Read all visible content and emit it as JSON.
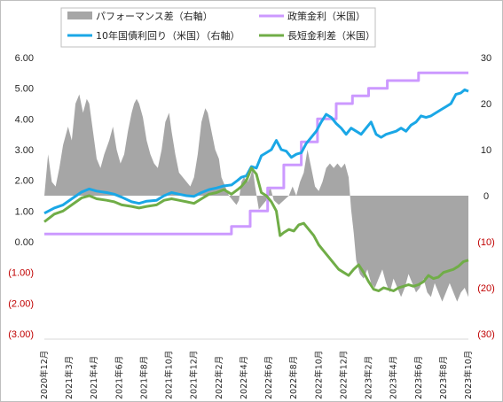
{
  "chart_data": {
    "type": "line",
    "x_range": [
      "2020-12",
      "2023-10"
    ],
    "x_tick_labels": [
      "2020年12月",
      "2021年3月",
      "2021年4月",
      "2021年6月",
      "2021年8月",
      "2021年10月",
      "2021年12月",
      "2022年2月",
      "2022年4月",
      "2022年6月",
      "2022年8月",
      "2022年10月",
      "2022年12月",
      "2023年2月",
      "2023年4月",
      "2023年6月",
      "2023年8月",
      "2023年10月"
    ],
    "y_left": {
      "ticks": [
        6,
        5,
        4,
        3,
        2,
        1,
        0,
        -1,
        -2,
        -3
      ],
      "tick_labels": [
        "6.00",
        "5.00",
        "4.00",
        "3.00",
        "2.00",
        "1.00",
        "0.00",
        "(1.00)",
        "(2.00)",
        "(3.00)"
      ],
      "range": [
        -3,
        6
      ]
    },
    "y_right": {
      "ticks": [
        30,
        20,
        10,
        0,
        -10,
        -20,
        -30
      ],
      "tick_labels": [
        "30",
        "20",
        "10",
        "0",
        "(10)",
        "(20)",
        "(30)"
      ],
      "range": [
        -30,
        30
      ]
    },
    "legend_position": "top",
    "gridlines": false,
    "series": [
      {
        "name": "パフォーマンス差（右軸）",
        "type": "area",
        "axis": "right",
        "color": "#a6a6a6",
        "points": [
          [
            0,
            0
          ],
          [
            0.3,
            9
          ],
          [
            0.6,
            3
          ],
          [
            0.9,
            2
          ],
          [
            1.2,
            6
          ],
          [
            1.5,
            11
          ],
          [
            1.9,
            15
          ],
          [
            2.2,
            12
          ],
          [
            2.5,
            20
          ],
          [
            2.8,
            22
          ],
          [
            3.1,
            18
          ],
          [
            3.4,
            21
          ],
          [
            3.6,
            20
          ],
          [
            3.9,
            14
          ],
          [
            4.2,
            8
          ],
          [
            4.5,
            6
          ],
          [
            4.8,
            9
          ],
          [
            5.2,
            12
          ],
          [
            5.5,
            15
          ],
          [
            5.8,
            10
          ],
          [
            6.1,
            7
          ],
          [
            6.4,
            9
          ],
          [
            6.7,
            14
          ],
          [
            7.0,
            18
          ],
          [
            7.2,
            20
          ],
          [
            7.4,
            21
          ],
          [
            7.6,
            20
          ],
          [
            7.9,
            17
          ],
          [
            8.2,
            12
          ],
          [
            8.5,
            9
          ],
          [
            8.8,
            7
          ],
          [
            9.1,
            6
          ],
          [
            9.4,
            10
          ],
          [
            9.7,
            16
          ],
          [
            10.0,
            18
          ],
          [
            10.2,
            14
          ],
          [
            10.5,
            9
          ],
          [
            10.8,
            5
          ],
          [
            11.1,
            4
          ],
          [
            11.4,
            3
          ],
          [
            11.7,
            2
          ],
          [
            12.0,
            4
          ],
          [
            12.3,
            9
          ],
          [
            12.6,
            16
          ],
          [
            12.9,
            19
          ],
          [
            13.1,
            18
          ],
          [
            13.4,
            14
          ],
          [
            13.7,
            10
          ],
          [
            14.0,
            8
          ],
          [
            14.2,
            4
          ],
          [
            14.5,
            2
          ],
          [
            14.8,
            0
          ],
          [
            15.1,
            -1
          ],
          [
            15.4,
            -2
          ],
          [
            15.6,
            -1
          ],
          [
            15.8,
            3
          ],
          [
            16.0,
            4
          ],
          [
            16.3,
            3
          ],
          [
            16.5,
            4
          ],
          [
            16.7,
            6
          ],
          [
            16.9,
            2
          ],
          [
            17.2,
            -3
          ],
          [
            17.5,
            -2
          ],
          [
            17.8,
            -1
          ],
          [
            18.1,
            2
          ],
          [
            18.4,
            -1
          ],
          [
            18.8,
            -2
          ],
          [
            19.2,
            -1
          ],
          [
            19.6,
            0
          ],
          [
            19.9,
            2
          ],
          [
            20.2,
            0
          ],
          [
            20.5,
            3
          ],
          [
            20.8,
            5
          ],
          [
            21.1,
            10
          ],
          [
            21.4,
            6
          ],
          [
            21.7,
            2
          ],
          [
            22.0,
            1
          ],
          [
            22.3,
            3
          ],
          [
            22.6,
            6
          ],
          [
            22.9,
            7
          ],
          [
            23.2,
            6
          ],
          [
            23.5,
            7
          ],
          [
            23.8,
            6
          ],
          [
            24.1,
            7
          ],
          [
            24.4,
            4
          ],
          [
            24.6,
            -3
          ],
          [
            24.8,
            -8
          ],
          [
            25.0,
            -14
          ],
          [
            25.3,
            -17
          ],
          [
            25.6,
            -18
          ],
          [
            25.9,
            -16
          ],
          [
            26.2,
            -19
          ],
          [
            26.5,
            -20
          ],
          [
            26.8,
            -18
          ],
          [
            27.1,
            -16
          ],
          [
            27.4,
            -19
          ],
          [
            27.7,
            -21
          ],
          [
            28.0,
            -18
          ],
          [
            28.3,
            -20
          ],
          [
            28.6,
            -22
          ],
          [
            28.9,
            -20
          ],
          [
            29.2,
            -17
          ],
          [
            29.5,
            -19
          ],
          [
            29.8,
            -21
          ],
          [
            30.1,
            -20
          ],
          [
            30.4,
            -18
          ],
          [
            30.7,
            -21
          ],
          [
            31.0,
            -22
          ],
          [
            31.3,
            -19
          ],
          [
            31.6,
            -21
          ],
          [
            31.9,
            -23
          ],
          [
            32.2,
            -21
          ],
          [
            32.5,
            -19
          ],
          [
            32.8,
            -21
          ],
          [
            33.1,
            -23
          ],
          [
            33.4,
            -21
          ],
          [
            33.7,
            -20
          ],
          [
            34.0,
            -22
          ]
        ]
      },
      {
        "name": "政策金利（米国）",
        "type": "line",
        "axis": "left",
        "color": "#cc99ff",
        "points": [
          [
            0,
            0.25
          ],
          [
            15.0,
            0.25
          ],
          [
            15.0,
            0.5
          ],
          [
            16.5,
            0.5
          ],
          [
            16.5,
            1.0
          ],
          [
            17.9,
            1.0
          ],
          [
            17.9,
            1.75
          ],
          [
            19.2,
            1.75
          ],
          [
            19.2,
            2.5
          ],
          [
            20.6,
            2.5
          ],
          [
            20.6,
            3.25
          ],
          [
            21.9,
            3.25
          ],
          [
            21.9,
            4.0
          ],
          [
            23.4,
            4.0
          ],
          [
            23.4,
            4.5
          ],
          [
            24.7,
            4.5
          ],
          [
            24.7,
            4.75
          ],
          [
            26.0,
            4.75
          ],
          [
            26.0,
            5.0
          ],
          [
            27.5,
            5.0
          ],
          [
            27.5,
            5.25
          ],
          [
            30.0,
            5.25
          ],
          [
            30.0,
            5.5
          ],
          [
            34.0,
            5.5
          ]
        ]
      },
      {
        "name": "10年国債利回り（米国）（右軸）",
        "type": "line",
        "axis": "left",
        "color": "#1aa7e6",
        "points": [
          [
            0,
            0.93
          ],
          [
            0.8,
            1.1
          ],
          [
            1.5,
            1.2
          ],
          [
            2.2,
            1.4
          ],
          [
            3.0,
            1.62
          ],
          [
            3.6,
            1.72
          ],
          [
            4.2,
            1.65
          ],
          [
            5.0,
            1.6
          ],
          [
            5.6,
            1.55
          ],
          [
            6.2,
            1.45
          ],
          [
            7.0,
            1.3
          ],
          [
            7.6,
            1.25
          ],
          [
            8.2,
            1.32
          ],
          [
            9.0,
            1.35
          ],
          [
            9.6,
            1.5
          ],
          [
            10.2,
            1.6
          ],
          [
            10.8,
            1.55
          ],
          [
            11.4,
            1.5
          ],
          [
            12.0,
            1.48
          ],
          [
            12.6,
            1.6
          ],
          [
            13.2,
            1.7
          ],
          [
            13.8,
            1.75
          ],
          [
            14.4,
            1.82
          ],
          [
            15.0,
            1.85
          ],
          [
            15.5,
            2.0
          ],
          [
            15.8,
            2.1
          ],
          [
            16.2,
            2.15
          ],
          [
            16.6,
            2.45
          ],
          [
            17.0,
            2.4
          ],
          [
            17.4,
            2.8
          ],
          [
            17.8,
            2.9
          ],
          [
            18.2,
            3.0
          ],
          [
            18.6,
            3.3
          ],
          [
            19.0,
            3.0
          ],
          [
            19.4,
            2.95
          ],
          [
            19.8,
            2.75
          ],
          [
            20.2,
            2.85
          ],
          [
            20.6,
            2.9
          ],
          [
            21.0,
            3.2
          ],
          [
            21.4,
            3.4
          ],
          [
            21.8,
            3.6
          ],
          [
            22.2,
            3.9
          ],
          [
            22.6,
            4.15
          ],
          [
            23.0,
            4.05
          ],
          [
            23.4,
            3.85
          ],
          [
            23.8,
            3.7
          ],
          [
            24.2,
            3.5
          ],
          [
            24.6,
            3.7
          ],
          [
            25.0,
            3.6
          ],
          [
            25.4,
            3.5
          ],
          [
            25.8,
            3.7
          ],
          [
            26.2,
            3.9
          ],
          [
            26.6,
            3.5
          ],
          [
            27.0,
            3.4
          ],
          [
            27.4,
            3.5
          ],
          [
            27.8,
            3.55
          ],
          [
            28.2,
            3.6
          ],
          [
            28.6,
            3.7
          ],
          [
            29.0,
            3.6
          ],
          [
            29.4,
            3.8
          ],
          [
            29.8,
            3.9
          ],
          [
            30.2,
            4.1
          ],
          [
            30.6,
            4.05
          ],
          [
            31.0,
            4.1
          ],
          [
            31.4,
            4.2
          ],
          [
            31.8,
            4.3
          ],
          [
            32.2,
            4.4
          ],
          [
            32.6,
            4.5
          ],
          [
            33.0,
            4.8
          ],
          [
            33.4,
            4.85
          ],
          [
            33.7,
            4.95
          ],
          [
            34.0,
            4.9
          ]
        ]
      },
      {
        "name": "長短金利差（米国）",
        "type": "line",
        "axis": "left",
        "color": "#70ad47",
        "points": [
          [
            0,
            0.65
          ],
          [
            0.8,
            0.9
          ],
          [
            1.5,
            1.0
          ],
          [
            2.2,
            1.2
          ],
          [
            3.0,
            1.43
          ],
          [
            3.6,
            1.5
          ],
          [
            4.2,
            1.4
          ],
          [
            5.0,
            1.35
          ],
          [
            5.6,
            1.3
          ],
          [
            6.2,
            1.2
          ],
          [
            7.0,
            1.15
          ],
          [
            7.6,
            1.1
          ],
          [
            8.2,
            1.15
          ],
          [
            9.0,
            1.2
          ],
          [
            9.6,
            1.35
          ],
          [
            10.2,
            1.4
          ],
          [
            10.8,
            1.35
          ],
          [
            11.4,
            1.3
          ],
          [
            12.0,
            1.25
          ],
          [
            12.6,
            1.4
          ],
          [
            13.2,
            1.55
          ],
          [
            13.8,
            1.6
          ],
          [
            14.4,
            1.7
          ],
          [
            15.0,
            1.55
          ],
          [
            15.5,
            1.7
          ],
          [
            15.8,
            1.8
          ],
          [
            16.2,
            2.0
          ],
          [
            16.6,
            2.4
          ],
          [
            17.0,
            2.2
          ],
          [
            17.4,
            1.6
          ],
          [
            17.8,
            1.5
          ],
          [
            18.2,
            1.3
          ],
          [
            18.6,
            1.0
          ],
          [
            18.9,
            0.2
          ],
          [
            19.2,
            0.3
          ],
          [
            19.6,
            0.4
          ],
          [
            20.0,
            0.35
          ],
          [
            20.4,
            0.55
          ],
          [
            20.8,
            0.6
          ],
          [
            21.2,
            0.4
          ],
          [
            21.6,
            0.2
          ],
          [
            22.0,
            -0.1
          ],
          [
            22.4,
            -0.3
          ],
          [
            22.8,
            -0.5
          ],
          [
            23.2,
            -0.7
          ],
          [
            23.6,
            -0.9
          ],
          [
            24.0,
            -1.0
          ],
          [
            24.4,
            -1.1
          ],
          [
            24.8,
            -0.9
          ],
          [
            25.2,
            -0.75
          ],
          [
            25.6,
            -1.0
          ],
          [
            26.0,
            -1.3
          ],
          [
            26.4,
            -1.55
          ],
          [
            26.8,
            -1.6
          ],
          [
            27.2,
            -1.5
          ],
          [
            27.6,
            -1.55
          ],
          [
            28.0,
            -1.6
          ],
          [
            28.4,
            -1.5
          ],
          [
            28.8,
            -1.45
          ],
          [
            29.2,
            -1.4
          ],
          [
            29.6,
            -1.45
          ],
          [
            30.0,
            -1.4
          ],
          [
            30.4,
            -1.3
          ],
          [
            30.8,
            -1.1
          ],
          [
            31.2,
            -1.2
          ],
          [
            31.6,
            -1.15
          ],
          [
            32.0,
            -1.0
          ],
          [
            32.4,
            -0.95
          ],
          [
            32.8,
            -0.9
          ],
          [
            33.2,
            -0.8
          ],
          [
            33.6,
            -0.65
          ],
          [
            34.0,
            -0.6
          ]
        ]
      }
    ]
  }
}
